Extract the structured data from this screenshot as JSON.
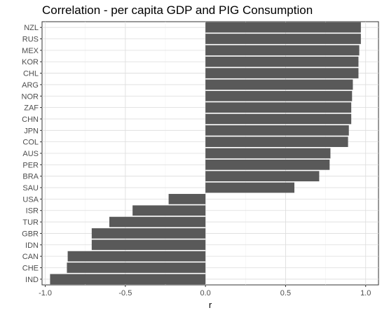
{
  "chart_data": {
    "type": "bar",
    "orientation": "horizontal",
    "title": "Correlation - per capita GDP and PIG Consumption",
    "xlabel": "r",
    "ylabel": "",
    "xlim": [
      -1.02,
      1.08
    ],
    "xticks": [
      -1.0,
      -0.5,
      0.0,
      0.5,
      1.0
    ],
    "xtick_labels": [
      "-1.0",
      "-0.5",
      "0.0",
      "0.5",
      "1.0"
    ],
    "grid": true,
    "legend": "none",
    "bar_color": "#595959",
    "categories": [
      "NZL",
      "RUS",
      "MEX",
      "KOR",
      "CHL",
      "ARG",
      "NOR",
      "ZAF",
      "CHN",
      "JPN",
      "COL",
      "AUS",
      "PER",
      "BRA",
      "SAU",
      "USA",
      "ISR",
      "TUR",
      "GBR",
      "IDN",
      "CAN",
      "CHE",
      "IND"
    ],
    "values": [
      0.97,
      0.97,
      0.96,
      0.955,
      0.955,
      0.92,
      0.915,
      0.91,
      0.91,
      0.895,
      0.89,
      0.78,
      0.775,
      0.71,
      0.555,
      -0.23,
      -0.455,
      -0.6,
      -0.71,
      -0.71,
      -0.86,
      -0.865,
      -0.97
    ]
  }
}
